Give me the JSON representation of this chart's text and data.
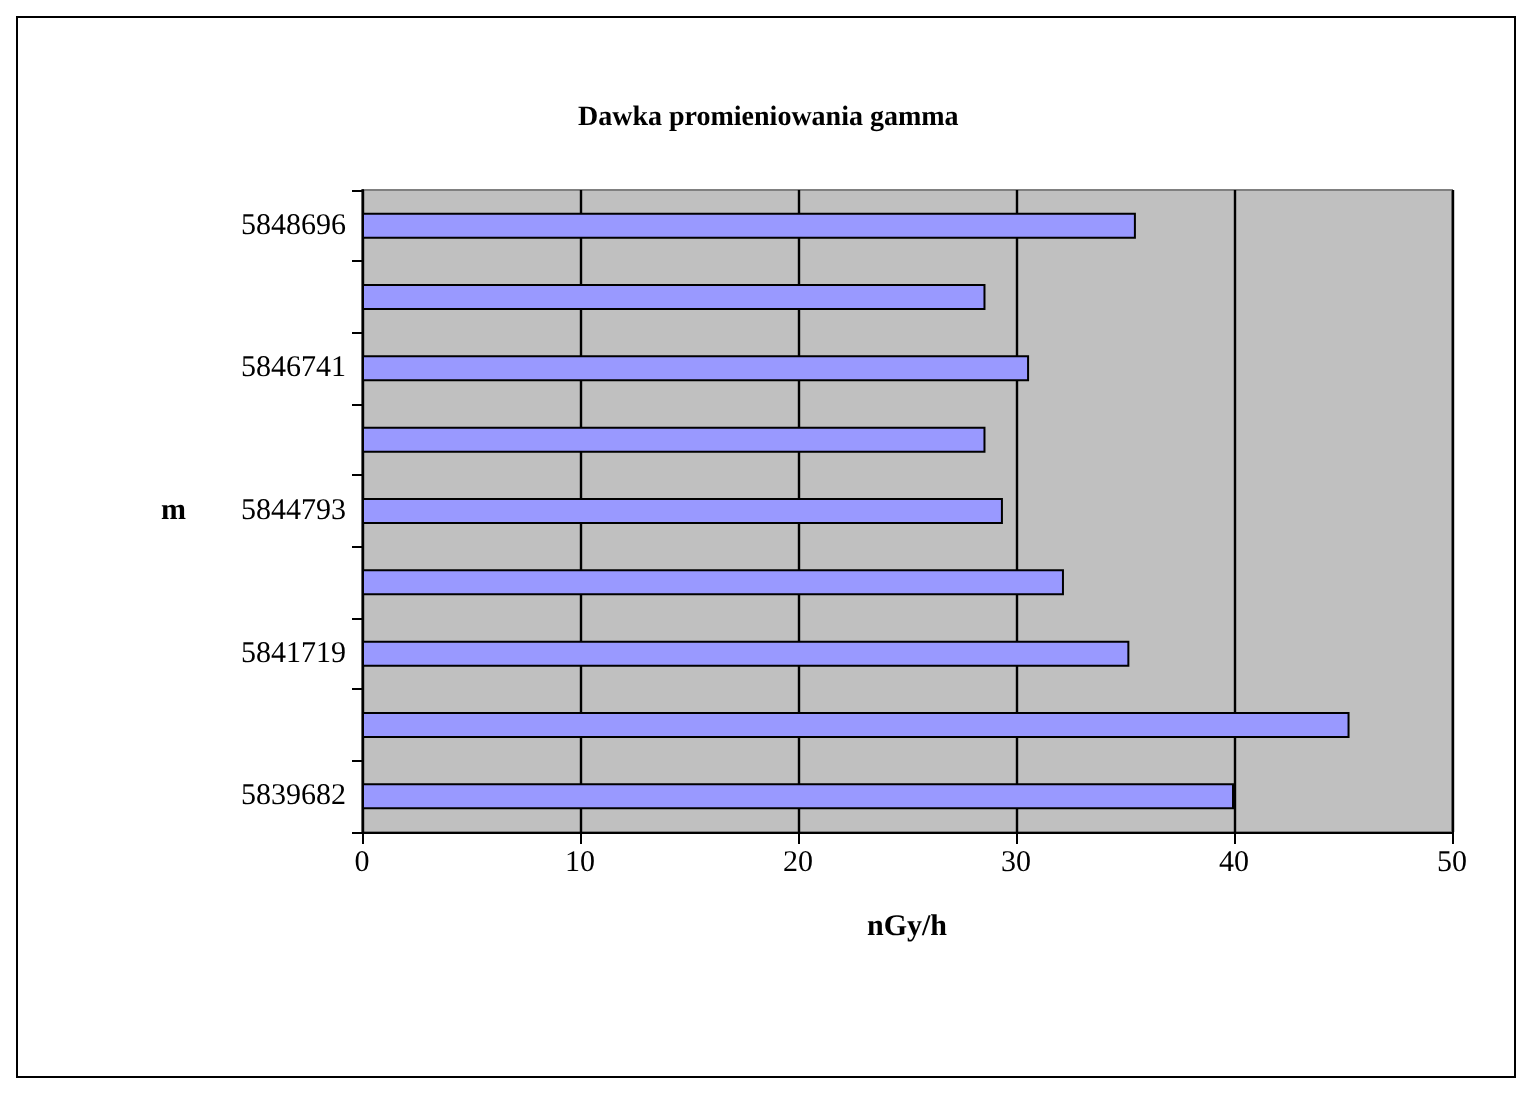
{
  "chart_data": {
    "type": "bar",
    "orientation": "horizontal",
    "title": "Dawka promieniowania gamma",
    "xlabel": "nGy/h",
    "ylabel": "m",
    "categories": [
      "5848696",
      null,
      "5846741",
      null,
      "5844793",
      null,
      "5841719",
      null,
      "5839682"
    ],
    "values": [
      35.5,
      28.6,
      30.6,
      28.6,
      29.4,
      32.2,
      35.2,
      45.3,
      40
    ],
    "color": "#9999ff",
    "xlim": [
      0,
      50
    ],
    "xticks": [
      0,
      10,
      20,
      30,
      40,
      50
    ],
    "grid": "x"
  }
}
